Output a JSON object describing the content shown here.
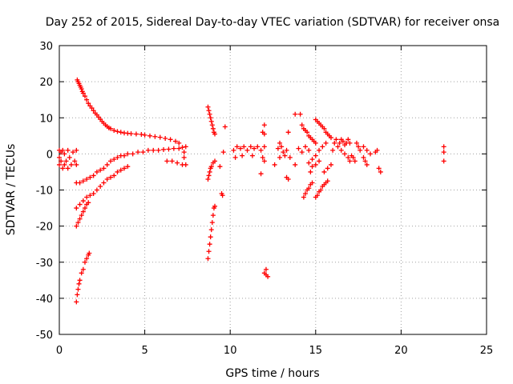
{
  "chart_data": {
    "type": "scatter",
    "title": "Day 252 of 2015, Sidereal Day-to-day VTEC variation (SDTVAR) for receiver onsa",
    "xlabel": "GPS time / hours",
    "ylabel": "SDTVAR / TECUs",
    "xlim": [
      0,
      25
    ],
    "ylim": [
      -50,
      30
    ],
    "xticks": [
      0,
      5,
      10,
      15,
      20,
      25
    ],
    "yticks": [
      -50,
      -40,
      -30,
      -20,
      -10,
      0,
      10,
      20,
      30
    ],
    "grid": true,
    "marker": "+",
    "color": "#ff0000",
    "series": [
      {
        "name": "SDTVAR",
        "points": [
          [
            0.0,
            1.0
          ],
          [
            0.0,
            -1.0
          ],
          [
            0.0,
            -3.0
          ],
          [
            0.1,
            0.5
          ],
          [
            0.1,
            -2.0
          ],
          [
            0.2,
            -4.0
          ],
          [
            0.2,
            1.0
          ],
          [
            0.3,
            -3.0
          ],
          [
            0.3,
            0.0
          ],
          [
            0.4,
            -2.0
          ],
          [
            0.5,
            -4.0
          ],
          [
            0.5,
            1.0
          ],
          [
            0.6,
            -1.0
          ],
          [
            0.7,
            -3.0
          ],
          [
            0.8,
            0.5
          ],
          [
            0.9,
            -2.0
          ],
          [
            1.0,
            1.0
          ],
          [
            1.0,
            -3.0
          ],
          [
            1.05,
            20.5
          ],
          [
            1.1,
            20.0
          ],
          [
            1.15,
            19.5
          ],
          [
            1.2,
            19.0
          ],
          [
            1.25,
            18.5
          ],
          [
            1.3,
            18.0
          ],
          [
            1.35,
            17.3
          ],
          [
            1.4,
            16.8
          ],
          [
            1.5,
            16.0
          ],
          [
            1.6,
            15.0
          ],
          [
            1.7,
            14.0
          ],
          [
            1.8,
            13.3
          ],
          [
            1.9,
            12.7
          ],
          [
            2.0,
            12.0
          ],
          [
            2.1,
            11.3
          ],
          [
            2.2,
            10.8
          ],
          [
            2.3,
            10.2
          ],
          [
            2.4,
            9.6
          ],
          [
            2.5,
            9.0
          ],
          [
            2.6,
            8.5
          ],
          [
            2.7,
            8.0
          ],
          [
            2.8,
            7.6
          ],
          [
            2.9,
            7.2
          ],
          [
            3.0,
            7.0
          ],
          [
            3.2,
            6.5
          ],
          [
            3.4,
            6.2
          ],
          [
            3.6,
            6.0
          ],
          [
            3.8,
            5.8
          ],
          [
            4.0,
            5.7
          ],
          [
            4.2,
            5.6
          ],
          [
            4.5,
            5.5
          ],
          [
            4.8,
            5.4
          ],
          [
            5.0,
            5.2
          ],
          [
            5.3,
            5.0
          ],
          [
            5.6,
            4.8
          ],
          [
            5.9,
            4.6
          ],
          [
            6.2,
            4.3
          ],
          [
            6.5,
            4.0
          ],
          [
            6.8,
            3.5
          ],
          [
            7.0,
            3.0
          ],
          [
            1.0,
            -8.0
          ],
          [
            1.2,
            -8.0
          ],
          [
            1.4,
            -7.5
          ],
          [
            1.6,
            -7.0
          ],
          [
            1.8,
            -6.5
          ],
          [
            2.0,
            -6.0
          ],
          [
            2.2,
            -5.0
          ],
          [
            2.4,
            -4.5
          ],
          [
            2.6,
            -4.0
          ],
          [
            2.8,
            -3.0
          ],
          [
            3.0,
            -2.0
          ],
          [
            3.2,
            -1.5
          ],
          [
            3.4,
            -1.0
          ],
          [
            3.6,
            -0.5
          ],
          [
            3.8,
            -0.5
          ],
          [
            4.0,
            0.0
          ],
          [
            4.3,
            0.0
          ],
          [
            4.6,
            0.5
          ],
          [
            4.9,
            0.5
          ],
          [
            5.2,
            1.0
          ],
          [
            5.5,
            1.0
          ],
          [
            5.8,
            1.0
          ],
          [
            6.1,
            1.2
          ],
          [
            6.4,
            1.3
          ],
          [
            6.7,
            1.5
          ],
          [
            7.0,
            1.5
          ],
          [
            7.2,
            1.8
          ],
          [
            7.4,
            2.0
          ],
          [
            1.0,
            -15.0
          ],
          [
            1.2,
            -14.0
          ],
          [
            1.4,
            -13.0
          ],
          [
            1.6,
            -12.0
          ],
          [
            1.8,
            -11.5
          ],
          [
            2.0,
            -11.0
          ],
          [
            2.2,
            -10.0
          ],
          [
            2.4,
            -9.0
          ],
          [
            2.6,
            -8.0
          ],
          [
            2.8,
            -7.0
          ],
          [
            3.0,
            -6.5
          ],
          [
            3.2,
            -6.0
          ],
          [
            3.4,
            -5.0
          ],
          [
            3.6,
            -4.5
          ],
          [
            3.8,
            -4.0
          ],
          [
            4.0,
            -3.5
          ],
          [
            1.0,
            -20.0
          ],
          [
            1.1,
            -19.0
          ],
          [
            1.2,
            -18.0
          ],
          [
            1.3,
            -17.0
          ],
          [
            1.4,
            -16.0
          ],
          [
            1.5,
            -15.0
          ],
          [
            1.6,
            -14.0
          ],
          [
            1.7,
            -13.5
          ],
          [
            1.0,
            -41.0
          ],
          [
            1.05,
            -39.0
          ],
          [
            1.1,
            -37.5
          ],
          [
            1.15,
            -36.0
          ],
          [
            1.2,
            -35.0
          ],
          [
            1.3,
            -33.0
          ],
          [
            1.4,
            -32.0
          ],
          [
            1.5,
            -30.0
          ],
          [
            1.6,
            -29.0
          ],
          [
            1.7,
            -28.0
          ],
          [
            1.75,
            -27.5
          ],
          [
            6.3,
            -2.0
          ],
          [
            6.6,
            -2.0
          ],
          [
            6.9,
            -2.5
          ],
          [
            7.2,
            -3.0
          ],
          [
            7.4,
            -3.0
          ],
          [
            7.3,
            0.5
          ],
          [
            7.3,
            -1.0
          ],
          [
            8.7,
            13.0
          ],
          [
            8.75,
            12.0
          ],
          [
            8.8,
            11.0
          ],
          [
            8.85,
            10.0
          ],
          [
            8.9,
            9.0
          ],
          [
            8.95,
            8.0
          ],
          [
            9.0,
            7.0
          ],
          [
            9.05,
            6.0
          ],
          [
            9.1,
            5.5
          ],
          [
            8.7,
            -7.0
          ],
          [
            8.75,
            -6.0
          ],
          [
            8.8,
            -5.0
          ],
          [
            8.85,
            -4.0
          ],
          [
            8.9,
            -3.5
          ],
          [
            9.0,
            -2.5
          ],
          [
            9.1,
            -2.0
          ],
          [
            8.7,
            -29.0
          ],
          [
            8.75,
            -27.0
          ],
          [
            8.8,
            -25.0
          ],
          [
            8.85,
            -23.0
          ],
          [
            8.9,
            -21.0
          ],
          [
            8.95,
            -19.0
          ],
          [
            9.0,
            -17.0
          ],
          [
            9.05,
            -15.0
          ],
          [
            9.1,
            -14.5
          ],
          [
            9.4,
            -3.5
          ],
          [
            9.5,
            -11.0
          ],
          [
            9.55,
            -11.5
          ],
          [
            9.7,
            7.5
          ],
          [
            9.6,
            0.5
          ],
          [
            10.2,
            1.0
          ],
          [
            10.4,
            2.0
          ],
          [
            10.6,
            1.5
          ],
          [
            10.8,
            2.0
          ],
          [
            11.0,
            1.0
          ],
          [
            11.2,
            2.0
          ],
          [
            11.4,
            1.5
          ],
          [
            11.6,
            2.0
          ],
          [
            11.8,
            1.0
          ],
          [
            12.0,
            2.0
          ],
          [
            10.3,
            -1.0
          ],
          [
            10.7,
            -0.5
          ],
          [
            11.3,
            -0.5
          ],
          [
            11.9,
            -1.0
          ],
          [
            11.8,
            -5.5
          ],
          [
            12.0,
            -2.0
          ],
          [
            11.9,
            6.0
          ],
          [
            12.0,
            5.5
          ],
          [
            12.0,
            8.0
          ],
          [
            12.1,
            -33.5
          ],
          [
            12.2,
            -34.0
          ],
          [
            12.0,
            -33.0
          ],
          [
            12.1,
            -32.0
          ],
          [
            12.6,
            -3.0
          ],
          [
            12.8,
            1.5
          ],
          [
            12.9,
            3.0
          ],
          [
            13.0,
            2.0
          ],
          [
            13.1,
            0.5
          ],
          [
            13.2,
            -0.5
          ],
          [
            13.3,
            1.0
          ],
          [
            12.9,
            -1.0
          ],
          [
            13.3,
            -6.5
          ],
          [
            13.4,
            -7.0
          ],
          [
            13.4,
            6.0
          ],
          [
            13.5,
            -1.0
          ],
          [
            13.8,
            11.0
          ],
          [
            14.1,
            11.0
          ],
          [
            13.8,
            -3.0
          ],
          [
            14.0,
            1.5
          ],
          [
            14.2,
            0.5
          ],
          [
            14.2,
            8.0
          ],
          [
            14.3,
            7.0
          ],
          [
            14.4,
            6.5
          ],
          [
            14.5,
            6.0
          ],
          [
            14.6,
            5.0
          ],
          [
            14.7,
            4.5
          ],
          [
            14.8,
            4.0
          ],
          [
            14.9,
            3.5
          ],
          [
            15.0,
            3.0
          ],
          [
            14.3,
            -12.0
          ],
          [
            14.4,
            -11.0
          ],
          [
            14.5,
            -10.0
          ],
          [
            14.6,
            -9.5
          ],
          [
            14.7,
            -8.5
          ],
          [
            14.8,
            -8.0
          ],
          [
            14.6,
            -2.5
          ],
          [
            14.8,
            -1.5
          ],
          [
            15.0,
            -0.5
          ],
          [
            15.2,
            1.0
          ],
          [
            15.4,
            2.0
          ],
          [
            15.6,
            3.0
          ],
          [
            14.8,
            -3.5
          ],
          [
            15.0,
            -3.0
          ],
          [
            15.2,
            -2.0
          ],
          [
            14.6,
            1.0
          ],
          [
            14.4,
            2.0
          ],
          [
            14.7,
            -5.0
          ],
          [
            15.0,
            9.5
          ],
          [
            15.1,
            9.0
          ],
          [
            15.2,
            8.5
          ],
          [
            15.3,
            8.0
          ],
          [
            15.4,
            7.5
          ],
          [
            15.5,
            7.0
          ],
          [
            15.6,
            6.0
          ],
          [
            15.7,
            5.5
          ],
          [
            15.8,
            5.0
          ],
          [
            15.9,
            4.5
          ],
          [
            15.0,
            -12.0
          ],
          [
            15.1,
            -11.5
          ],
          [
            15.2,
            -10.5
          ],
          [
            15.3,
            -10.0
          ],
          [
            15.4,
            -9.0
          ],
          [
            15.5,
            -8.5
          ],
          [
            15.6,
            -8.0
          ],
          [
            15.7,
            -7.5
          ],
          [
            15.5,
            -5.0
          ],
          [
            15.7,
            -4.0
          ],
          [
            15.9,
            -3.0
          ],
          [
            16.0,
            1.0
          ],
          [
            16.1,
            3.0
          ],
          [
            16.2,
            4.0
          ],
          [
            16.3,
            2.0
          ],
          [
            16.4,
            3.0
          ],
          [
            16.5,
            4.0
          ],
          [
            16.6,
            3.5
          ],
          [
            16.7,
            2.5
          ],
          [
            16.8,
            3.0
          ],
          [
            16.9,
            4.0
          ],
          [
            17.0,
            3.0
          ],
          [
            16.5,
            1.0
          ],
          [
            16.7,
            0.0
          ],
          [
            16.9,
            -1.0
          ],
          [
            17.0,
            -2.0
          ],
          [
            17.1,
            -0.5
          ],
          [
            17.2,
            -1.0
          ],
          [
            17.3,
            -2.0
          ],
          [
            17.4,
            3.0
          ],
          [
            17.5,
            2.0
          ],
          [
            17.6,
            1.0
          ],
          [
            17.8,
            -1.0
          ],
          [
            17.9,
            -2.0
          ],
          [
            18.0,
            -3.0
          ],
          [
            17.8,
            2.0
          ],
          [
            18.0,
            1.0
          ],
          [
            18.2,
            0.0
          ],
          [
            18.5,
            0.5
          ],
          [
            18.6,
            1.0
          ],
          [
            18.7,
            -4.0
          ],
          [
            18.8,
            -5.0
          ],
          [
            22.5,
            2.0
          ],
          [
            22.5,
            0.5
          ],
          [
            22.5,
            -2.0
          ]
        ]
      }
    ]
  }
}
